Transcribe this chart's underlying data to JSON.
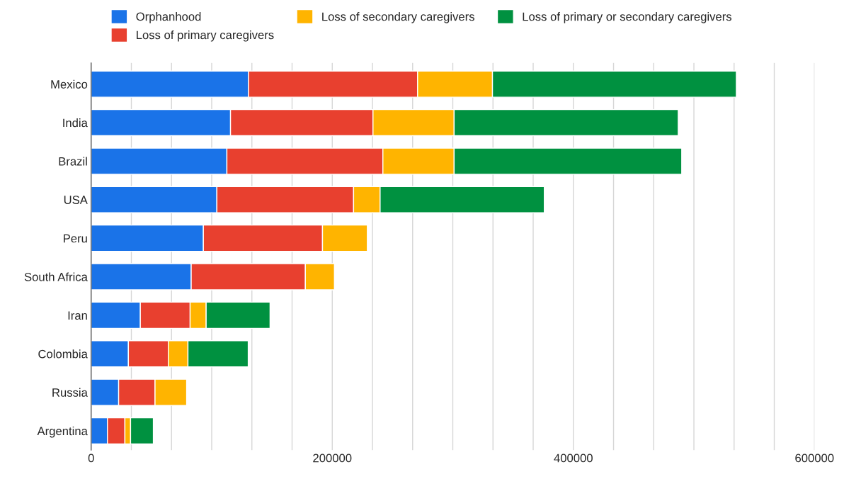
{
  "chart_data": {
    "type": "bar",
    "orientation": "horizontal",
    "stacked": true,
    "categories": [
      "Mexico",
      "India",
      "Brazil",
      "USA",
      "Peru",
      "South Africa",
      "Iran",
      "Colombia",
      "Russia",
      "Argentina"
    ],
    "series": [
      {
        "name": "Orphanhood",
        "color": "#1a73e8",
        "values": [
          130500,
          115600,
          112600,
          104300,
          93100,
          83000,
          40800,
          30900,
          22800,
          13500
        ]
      },
      {
        "name": "Loss of primary caregivers",
        "color": "#e8402f",
        "values": [
          140300,
          118200,
          129400,
          113400,
          98800,
          94700,
          41300,
          33100,
          30200,
          14500
        ]
      },
      {
        "name": "Loss of secondary caregivers",
        "color": "#ffb400",
        "values": [
          62100,
          67300,
          59100,
          22000,
          37200,
          24100,
          13300,
          16300,
          26200,
          4700
        ]
      },
      {
        "name": "Loss of primary or secondary caregivers",
        "color": "#009140",
        "values": [
          202300,
          185900,
          188800,
          136200,
          null,
          null,
          53000,
          50000,
          null,
          18900
        ]
      }
    ],
    "xlim": [
      0,
      600000
    ],
    "xticks": [
      0,
      {
        "value": 33333,
        "label": null
      },
      {
        "value": 66667,
        "label": null
      },
      {
        "value": 100000,
        "label": null
      },
      {
        "value": 133333,
        "label": null
      },
      {
        "value": 166667,
        "label": null
      },
      200000,
      {
        "value": 233333,
        "label": null
      },
      {
        "value": 266667,
        "label": null
      },
      {
        "value": 300000,
        "label": null
      },
      {
        "value": 333333,
        "label": null
      },
      {
        "value": 366667,
        "label": null
      },
      400000,
      {
        "value": 433333,
        "label": null
      },
      {
        "value": 466667,
        "label": null
      },
      {
        "value": 500000,
        "label": null
      },
      {
        "value": 533333,
        "label": null
      },
      {
        "value": 566667,
        "label": null
      },
      600000
    ],
    "grid": "x",
    "legend": "top"
  }
}
